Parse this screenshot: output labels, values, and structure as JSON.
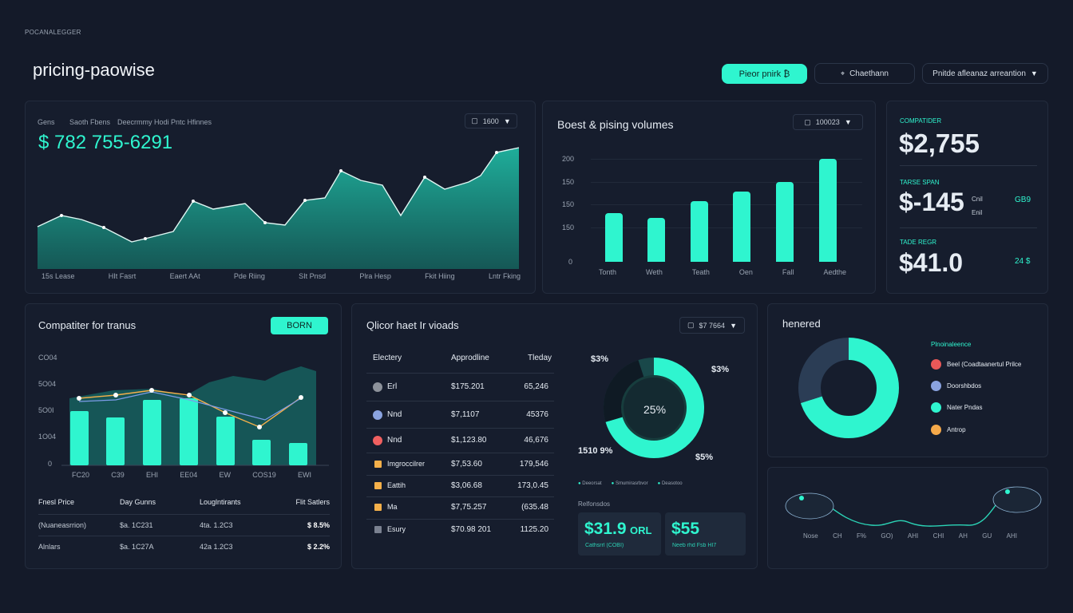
{
  "header": {
    "brand": "POCANALEGGER",
    "title": "pricing-paowise",
    "btn_primary": "Pieor pnirk ₿",
    "btn_secondary": "Chaethann",
    "select_label": "Pnitde afleanaz arreantion"
  },
  "main_chart": {
    "tab1": "Gens",
    "tab2": "Saoth Fbens",
    "tab3": "Deecrmmy Hodi Pntc Hfinnes",
    "select": "1600",
    "big_value": "$ 782 755-6291",
    "x_labels": [
      "15s Lease",
      "HIt Fasrt",
      "Eaert AAt",
      "Pde Riing",
      "SIt Pnsd",
      "Plra Hesp",
      "Fkit Hiing",
      "Lntr Fking"
    ]
  },
  "volumes": {
    "title": "Boest & pising volumes",
    "select": "100023",
    "y_labels": [
      "200",
      "150",
      "150",
      "150",
      "0"
    ],
    "x_labels": [
      "Tonth",
      "Weth",
      "Teath",
      "Oen",
      "Fall",
      "Aedthe"
    ]
  },
  "stats": [
    {
      "label": "COMPATIDER",
      "value": "$2,755",
      "note": "",
      "side": ""
    },
    {
      "label": "TARSE SPAN",
      "value": "$-145",
      "note": "Cnil\nEnil",
      "side": "GB9"
    },
    {
      "label": "TADE REGR",
      "value": "$41.0",
      "note": "",
      "side": "24 $"
    }
  ],
  "competitor": {
    "title": "Compatiter for tranus",
    "button": "BORN",
    "y_labels": [
      "CO04",
      "5O04",
      "5O0I",
      "1O04",
      "0"
    ],
    "x_labels": [
      "FC20",
      "C39",
      "EHI",
      "EE04",
      "EW",
      "COS19",
      "EWI"
    ],
    "table_headers": [
      "Fnesl Price",
      "Day Gunns",
      "Louglntirants",
      "Flit Satlers"
    ],
    "table_rows": [
      [
        "(Nuaneasrrion)",
        "$a. 1C231",
        "4ta. 1.2C3",
        "$ 8.5%"
      ],
      [
        "Alnlars",
        "$a. 1C27A",
        "42a 1.2C3",
        "$ 2.2%"
      ]
    ]
  },
  "market": {
    "title": "Qlicor haet Ir vioads",
    "select": "$7 7664",
    "headers": [
      "Electery",
      "Approdline",
      "Tleday"
    ],
    "rows": [
      {
        "name": "Erl",
        "approx": "$175.201",
        "today": "65,246",
        "color": "#8d929b",
        "shape": "dot"
      },
      {
        "name": "Nnd",
        "approx": "$7,1107",
        "today": "45376",
        "color": "#8aa3e0",
        "shape": "dot"
      },
      {
        "name": "Nnd",
        "approx": "$1,123.80",
        "today": "46,676",
        "color": "#f06060",
        "shape": "dot"
      },
      {
        "name": "Imgroccilrer",
        "approx": "$7,53.60",
        "today": "179,546",
        "color": "#f5b04a",
        "shape": "sq"
      },
      {
        "name": "Eattih",
        "approx": "$3,06.68",
        "today": "173,0.45",
        "color": "#f5b04a",
        "shape": "sq"
      },
      {
        "name": "Ma",
        "approx": "$7,75.257",
        "today": "(635.48",
        "color": "#f5b04a",
        "shape": "sq"
      },
      {
        "name": "Esury",
        "approx": "$70.98 201",
        "today": "1125.20",
        "color": "#7a8190",
        "shape": "sq"
      }
    ],
    "donut_center": "25%",
    "callout_tl": "$3%",
    "callout_tr": "$3%",
    "callout_bl": "1510 9%",
    "callout_br": "$5%",
    "legend": [
      "Deeorsat",
      "Smumirasrbvor",
      "Deasotoo"
    ],
    "sub_label": "Relfonsdos",
    "card1_value": "$31.9",
    "card1_unit": "ORL",
    "card1_sub": "Cathsrrl (COBI)",
    "card2_value": "$55",
    "card2_sub": "Neeb rhd Fsb HI7"
  },
  "honered": {
    "title": "henered",
    "legend_title": "Plnoinaleence",
    "items": [
      {
        "label": "Beel (Coadtaanertul Prilce",
        "color": "#e95858"
      },
      {
        "label": "Doorshbdos",
        "color": "#8aa3e0"
      },
      {
        "label": "Nater Pndas",
        "color": "#2ff5cf"
      },
      {
        "label": "Antrop",
        "color": "#f5a94a"
      }
    ],
    "donut_values": [
      70,
      30
    ]
  },
  "wave": {
    "x_labels": [
      "Nose",
      "CH",
      "F%",
      "GO)",
      "AHI",
      "CHI",
      "AH",
      "GU",
      "AHI"
    ]
  }
}
